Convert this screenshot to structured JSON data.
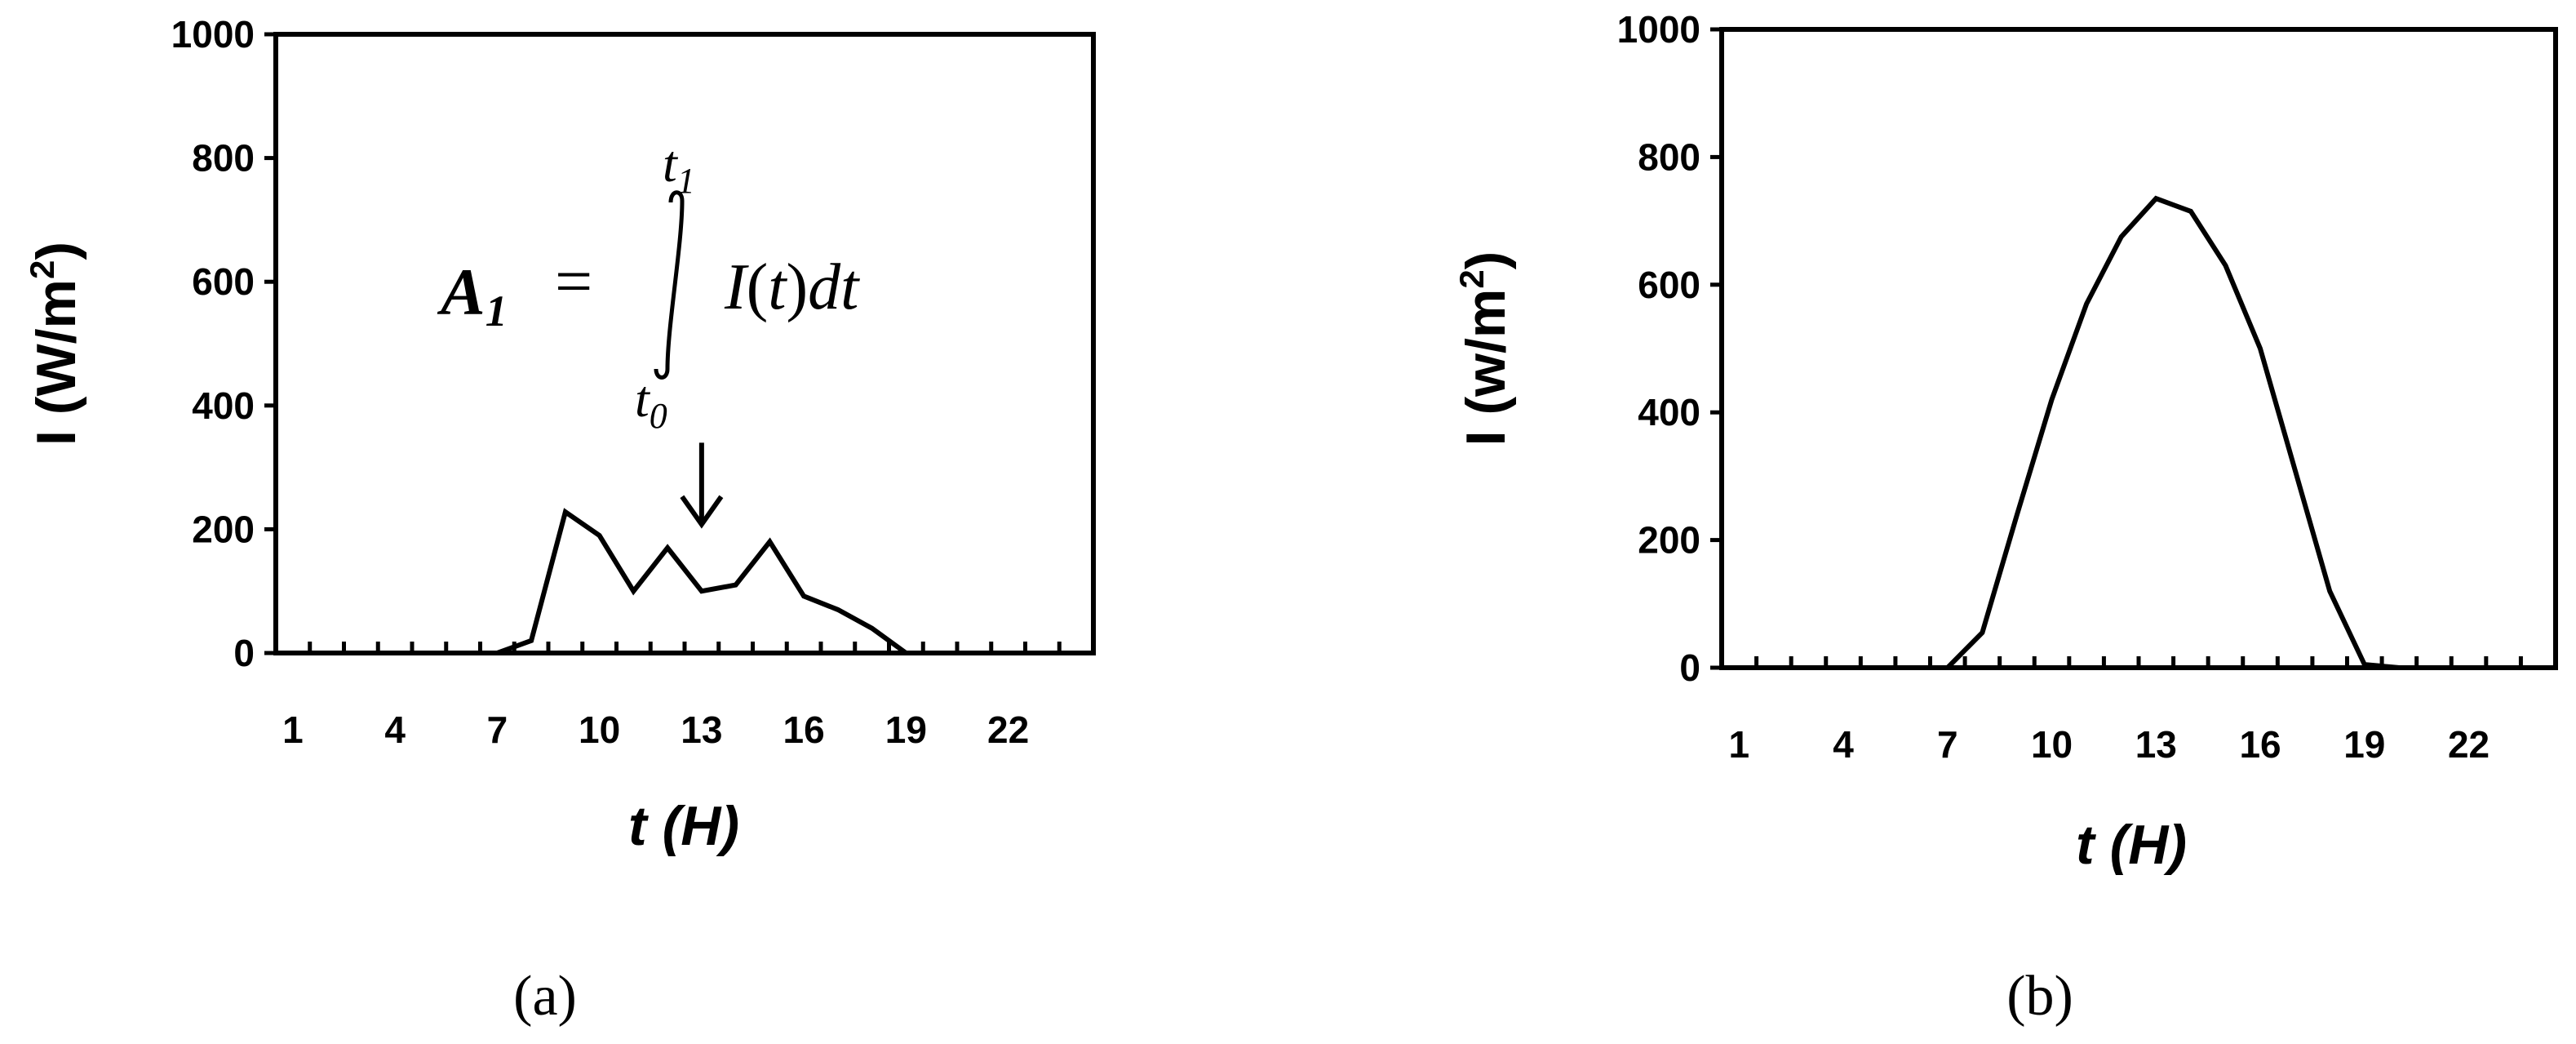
{
  "chart_data": [
    {
      "type": "line",
      "panel_label": "(a)",
      "xlabel": "t (H)",
      "ylabel": "I (W/m",
      "ylabel_sup": "2",
      "ylabel_close": ")",
      "ylim": [
        0,
        1000
      ],
      "yticks": [
        0,
        200,
        400,
        600,
        800,
        1000
      ],
      "xlim": [
        0,
        24
      ],
      "xtick_labels": [
        "1",
        "4",
        "7",
        "10",
        "13",
        "16",
        "19",
        "22"
      ],
      "grid": false,
      "x": [
        1,
        2,
        3,
        4,
        5,
        6,
        7,
        8,
        9,
        10,
        11,
        12,
        13,
        14,
        15,
        16,
        17,
        18,
        19,
        20,
        21,
        22,
        23,
        24
      ],
      "y": [
        0,
        0,
        0,
        0,
        0,
        0,
        0,
        20,
        228,
        190,
        100,
        170,
        100,
        110,
        180,
        92,
        70,
        40,
        0,
        0,
        0,
        0,
        0,
        0
      ],
      "annotation": {
        "lhs": "A",
        "lhs_sub": "1",
        "equals": "=",
        "upper": "t",
        "upper_sub": "1",
        "lower": "t",
        "lower_sub": "0",
        "integrand_I": "I",
        "integrand_open": "(",
        "integrand_t": "t",
        "integrand_close": ")",
        "integrand_d": "dt",
        "arrow_points_to_x": 13,
        "arrow_points_to_y": 200
      }
    },
    {
      "type": "line",
      "panel_label": "(b)",
      "xlabel": "t (H)",
      "ylabel": "I (w/m",
      "ylabel_sup": "2",
      "ylabel_close": ")",
      "ylim": [
        0,
        1000
      ],
      "yticks": [
        0,
        200,
        400,
        600,
        800,
        1000
      ],
      "xlim": [
        0,
        24
      ],
      "xtick_labels": [
        "1",
        "4",
        "7",
        "10",
        "13",
        "16",
        "19",
        "22"
      ],
      "grid": false,
      "x": [
        1,
        2,
        3,
        4,
        5,
        6,
        7,
        8,
        9,
        10,
        11,
        12,
        13,
        14,
        15,
        16,
        17,
        18,
        19,
        20,
        21,
        22,
        23,
        24
      ],
      "y": [
        0,
        0,
        0,
        0,
        0,
        0,
        0,
        55,
        240,
        420,
        570,
        675,
        735,
        715,
        630,
        500,
        310,
        120,
        5,
        0,
        0,
        0,
        0,
        0
      ]
    }
  ]
}
